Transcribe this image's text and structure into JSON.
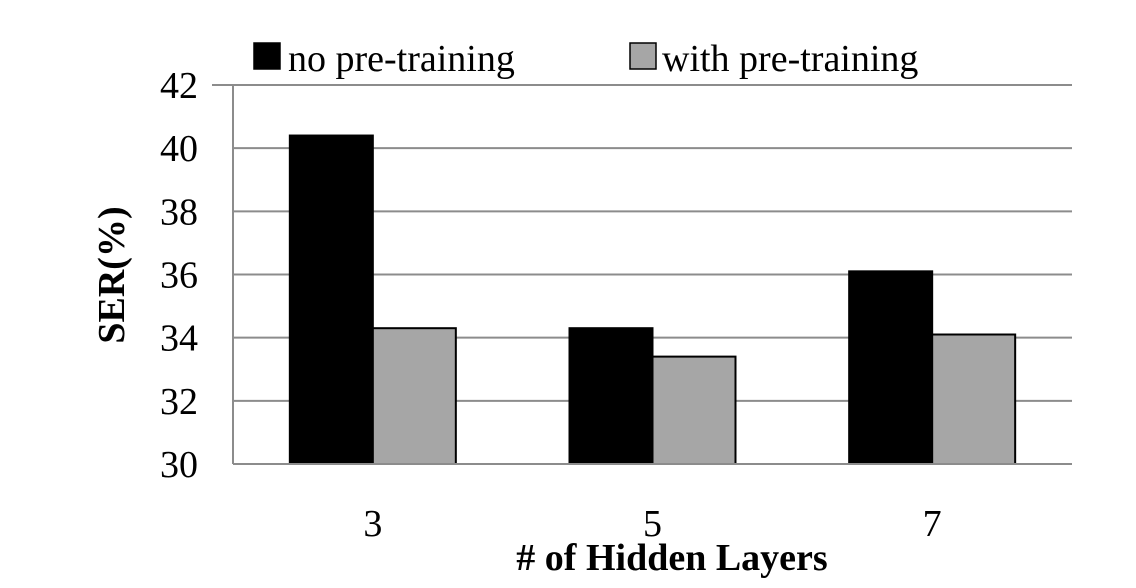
{
  "chart_data": {
    "type": "bar",
    "categories": [
      "3",
      "5",
      "7"
    ],
    "series": [
      {
        "name": "no pre-training",
        "values": [
          40.4,
          34.3,
          36.1
        ],
        "color": "#000000"
      },
      {
        "name": "with pre-training",
        "values": [
          34.3,
          33.4,
          34.1
        ],
        "color": "#a6a6a6"
      }
    ],
    "ylim": [
      30,
      42
    ],
    "yticks": [
      "30",
      "32",
      "34",
      "36",
      "38",
      "40",
      "42"
    ],
    "xlabel": "# of Hidden Layers",
    "ylabel": "SER(%)",
    "grid": true,
    "legend_position": "top"
  }
}
